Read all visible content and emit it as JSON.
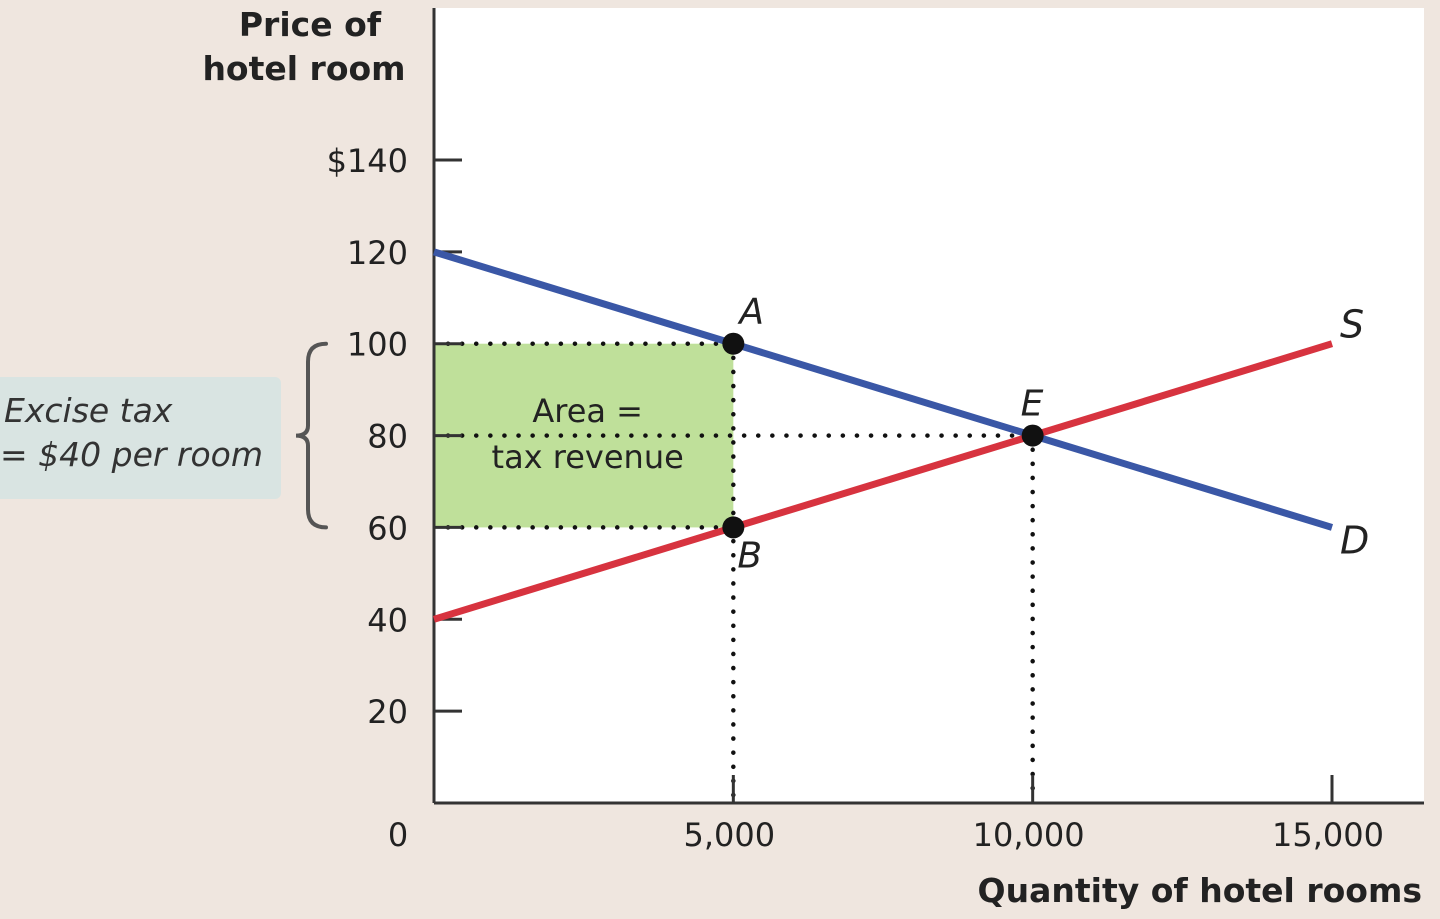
{
  "chart_data": {
    "type": "line",
    "ylabel_lines": [
      "Price of",
      "hotel room"
    ],
    "xlabel": "Quantity of hotel rooms",
    "xlim": [
      0,
      15000
    ],
    "ylim": [
      0,
      140
    ],
    "x_ticks": [
      {
        "value": 0,
        "label": "0"
      },
      {
        "value": 5000,
        "label": "5,000"
      },
      {
        "value": 10000,
        "label": "10,000"
      },
      {
        "value": 15000,
        "label": "15,000"
      }
    ],
    "y_ticks": [
      {
        "value": 20,
        "label": "20"
      },
      {
        "value": 40,
        "label": "40"
      },
      {
        "value": 60,
        "label": "60"
      },
      {
        "value": 80,
        "label": "80"
      },
      {
        "value": 100,
        "label": "100"
      },
      {
        "value": 120,
        "label": "120"
      },
      {
        "value": 140,
        "label": "$140"
      }
    ],
    "series": [
      {
        "name": "D",
        "color": "#3a57a6",
        "x": [
          0,
          15000
        ],
        "y": [
          120,
          60
        ]
      },
      {
        "name": "S",
        "color": "#d7333f",
        "x": [
          0,
          15000
        ],
        "y": [
          40,
          100
        ]
      }
    ],
    "points": [
      {
        "label": "A",
        "x": 5000,
        "y": 100
      },
      {
        "label": "B",
        "x": 5000,
        "y": 60
      },
      {
        "label": "E",
        "x": 10000,
        "y": 80
      }
    ],
    "shaded_area": {
      "x": [
        0,
        5000
      ],
      "y": [
        60,
        100
      ],
      "color": "#bfe09a",
      "text_lines": [
        "Area =",
        "tax revenue"
      ]
    },
    "tax_annotation": {
      "text_lines": [
        "Excise tax",
        "= $40 per room"
      ],
      "bracket_y": [
        60,
        100
      ],
      "box_color": "#d9e4e2"
    }
  }
}
